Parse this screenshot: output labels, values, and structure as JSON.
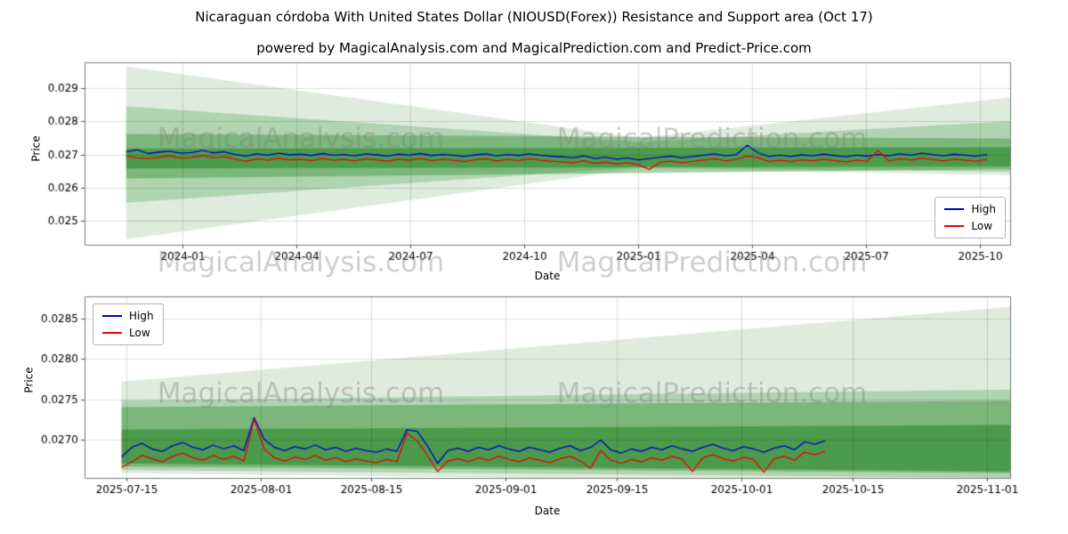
{
  "figure": {
    "title": "Nicaraguan córdoba With United States Dollar (NIOUSD(Forex)) Resistance and Support area (Oct 17)",
    "subtitle": "powered by MagicalAnalysis.com and MagicalPrediction.com and Predict-Price.com",
    "watermark_left": "MagicalAnalysis.com",
    "watermark_right": "MagicalPrediction.com"
  },
  "chart_data": [
    {
      "type": "line",
      "xlabel": "Date",
      "ylabel": "Price",
      "grid": true,
      "legend_position": "lower right",
      "ylim": [
        0.02428,
        0.02978
      ],
      "yticks": [
        {
          "label": "0.025",
          "value": 0.025
        },
        {
          "label": "0.026",
          "value": 0.026
        },
        {
          "label": "0.027",
          "value": 0.027
        },
        {
          "label": "0.028",
          "value": 0.028
        },
        {
          "label": "0.029",
          "value": 0.029
        }
      ],
      "xticks": [
        {
          "label": "2024-01",
          "pos": 0.106
        },
        {
          "label": "2024-04",
          "pos": 0.229
        },
        {
          "label": "2024-07",
          "pos": 0.352
        },
        {
          "label": "2024-10",
          "pos": 0.475
        },
        {
          "label": "2025-01",
          "pos": 0.598
        },
        {
          "label": "2025-04",
          "pos": 0.721
        },
        {
          "label": "2025-07",
          "pos": 0.844
        },
        {
          "label": "2025-10",
          "pos": 0.967
        }
      ],
      "bands": [
        {
          "color": "#2e8b2e",
          "alpha": 0.16,
          "points": [
            {
              "x": 0.045,
              "top": 0.02965,
              "bottom": 0.02445
            },
            {
              "x": 0.6,
              "top": 0.0275,
              "bottom": 0.02658
            },
            {
              "x": 1.0,
              "top": 0.02872,
              "bottom": 0.02638
            }
          ]
        },
        {
          "color": "#2e8b2e",
          "alpha": 0.26,
          "points": [
            {
              "x": 0.045,
              "top": 0.02845,
              "bottom": 0.02555
            },
            {
              "x": 0.6,
              "top": 0.02738,
              "bottom": 0.02662
            },
            {
              "x": 1.0,
              "top": 0.028,
              "bottom": 0.02648
            }
          ]
        },
        {
          "color": "#2e8b2e",
          "alpha": 0.4,
          "points": [
            {
              "x": 0.045,
              "top": 0.02762,
              "bottom": 0.02628
            },
            {
              "x": 1.0,
              "top": 0.02748,
              "bottom": 0.02656
            }
          ]
        },
        {
          "color": "#2e8b2e",
          "alpha": 0.62,
          "points": [
            {
              "x": 0.045,
              "top": 0.02718,
              "bottom": 0.02658
            },
            {
              "x": 1.0,
              "top": 0.02722,
              "bottom": 0.02664
            }
          ]
        }
      ],
      "series": [
        {
          "name": "High",
          "color": "#0000cc",
          "x_start": 0.045,
          "x_end": 0.975,
          "values": [
            0.02708,
            0.02715,
            0.02703,
            0.02707,
            0.0271,
            0.02704,
            0.02706,
            0.02712,
            0.02705,
            0.02708,
            0.027,
            0.02695,
            0.02702,
            0.02698,
            0.02704,
            0.02699,
            0.02701,
            0.02697,
            0.02703,
            0.02698,
            0.027,
            0.02696,
            0.02702,
            0.02699,
            0.02695,
            0.02701,
            0.02698,
            0.02703,
            0.02697,
            0.027,
            0.02698,
            0.02694,
            0.02699,
            0.02702,
            0.02696,
            0.027,
            0.02697,
            0.02702,
            0.02698,
            0.02695,
            0.02693,
            0.0269,
            0.02696,
            0.02688,
            0.02692,
            0.02686,
            0.0269,
            0.02684,
            0.02688,
            0.02692,
            0.02695,
            0.0269,
            0.02694,
            0.02698,
            0.02702,
            0.02696,
            0.027,
            0.02728,
            0.02705,
            0.02694,
            0.02698,
            0.02694,
            0.02699,
            0.02696,
            0.02701,
            0.02697,
            0.02693,
            0.02698,
            0.02695,
            0.027,
            0.02696,
            0.02702,
            0.02698,
            0.02704,
            0.027,
            0.02696,
            0.02701,
            0.02698,
            0.02695,
            0.027
          ]
        },
        {
          "name": "Low",
          "color": "#ee0000",
          "x_start": 0.045,
          "x_end": 0.975,
          "values": [
            0.02695,
            0.0269,
            0.02688,
            0.02692,
            0.02696,
            0.02689,
            0.02691,
            0.02697,
            0.0269,
            0.02693,
            0.02686,
            0.0268,
            0.02687,
            0.02683,
            0.02689,
            0.02684,
            0.02686,
            0.02682,
            0.02688,
            0.02683,
            0.02685,
            0.02681,
            0.02687,
            0.02684,
            0.0268,
            0.02686,
            0.02683,
            0.02688,
            0.02682,
            0.02685,
            0.02683,
            0.02679,
            0.02684,
            0.02687,
            0.02681,
            0.02685,
            0.02682,
            0.02687,
            0.02683,
            0.0268,
            0.02678,
            0.02675,
            0.02681,
            0.02673,
            0.02677,
            0.02671,
            0.02675,
            0.02669,
            0.02655,
            0.02677,
            0.0268,
            0.02675,
            0.02679,
            0.02683,
            0.02687,
            0.02681,
            0.02685,
            0.02695,
            0.0269,
            0.02679,
            0.02683,
            0.02679,
            0.02684,
            0.02681,
            0.02686,
            0.02682,
            0.02678,
            0.02683,
            0.0268,
            0.02712,
            0.02681,
            0.02687,
            0.02683,
            0.02689,
            0.02685,
            0.02681,
            0.02686,
            0.02683,
            0.0268,
            0.02685
          ]
        }
      ]
    },
    {
      "type": "line",
      "xlabel": "Date",
      "ylabel": "Price",
      "grid": true,
      "legend_position": "upper left",
      "ylim": [
        0.02652,
        0.02878
      ],
      "yticks": [
        {
          "label": "0.0270",
          "value": 0.027
        },
        {
          "label": "0.0275",
          "value": 0.0275
        },
        {
          "label": "0.0280",
          "value": 0.028
        },
        {
          "label": "0.0285",
          "value": 0.0285
        }
      ],
      "xticks": [
        {
          "label": "2025-07-15",
          "pos": 0.045
        },
        {
          "label": "2025-08-01",
          "pos": 0.19
        },
        {
          "label": "2025-08-15",
          "pos": 0.31
        },
        {
          "label": "2025-09-01",
          "pos": 0.455
        },
        {
          "label": "2025-09-15",
          "pos": 0.575
        },
        {
          "label": "2025-10-01",
          "pos": 0.71
        },
        {
          "label": "2025-10-15",
          "pos": 0.83
        },
        {
          "label": "2025-11-01",
          "pos": 0.975
        }
      ],
      "bands": [
        {
          "color": "#2e8b2e",
          "alpha": 0.16,
          "points": [
            {
              "x": 0.04,
              "top": 0.02772,
              "bottom": 0.02658
            },
            {
              "x": 1.0,
              "top": 0.02865,
              "bottom": 0.02645
            }
          ]
        },
        {
          "color": "#2e8b2e",
          "alpha": 0.26,
          "points": [
            {
              "x": 0.04,
              "top": 0.02748,
              "bottom": 0.02662
            },
            {
              "x": 1.0,
              "top": 0.02762,
              "bottom": 0.02652
            }
          ]
        },
        {
          "color": "#2e8b2e",
          "alpha": 0.4,
          "points": [
            {
              "x": 0.04,
              "top": 0.0274,
              "bottom": 0.02666
            },
            {
              "x": 1.0,
              "top": 0.02748,
              "bottom": 0.02658
            }
          ]
        },
        {
          "color": "#2e8b2e",
          "alpha": 0.62,
          "points": [
            {
              "x": 0.04,
              "top": 0.02712,
              "bottom": 0.0267
            },
            {
              "x": 1.0,
              "top": 0.02718,
              "bottom": 0.0266
            }
          ]
        }
      ],
      "series": [
        {
          "name": "High",
          "color": "#0000cc",
          "x_start": 0.04,
          "x_end": 0.8,
          "values": [
            0.02678,
            0.0269,
            0.02695,
            0.02688,
            0.02685,
            0.02692,
            0.02696,
            0.0269,
            0.02687,
            0.02693,
            0.02688,
            0.02692,
            0.02686,
            0.02727,
            0.027,
            0.0269,
            0.02686,
            0.02691,
            0.02688,
            0.02693,
            0.02687,
            0.0269,
            0.02685,
            0.02689,
            0.02686,
            0.02684,
            0.02688,
            0.02685,
            0.02712,
            0.0271,
            0.02692,
            0.0267,
            0.02686,
            0.02689,
            0.02685,
            0.0269,
            0.02687,
            0.02692,
            0.02688,
            0.02685,
            0.0269,
            0.02687,
            0.02684,
            0.02689,
            0.02692,
            0.02686,
            0.0269,
            0.02699,
            0.02687,
            0.02683,
            0.02688,
            0.02685,
            0.0269,
            0.02687,
            0.02692,
            0.02688,
            0.02685,
            0.0269,
            0.02694,
            0.02689,
            0.02686,
            0.02691,
            0.02688,
            0.02684,
            0.02689,
            0.02692,
            0.02687,
            0.02697,
            0.02694,
            0.02698
          ]
        },
        {
          "name": "Low",
          "color": "#ee0000",
          "x_start": 0.04,
          "x_end": 0.8,
          "values": [
            0.02665,
            0.02672,
            0.0268,
            0.02676,
            0.02672,
            0.02679,
            0.02683,
            0.02677,
            0.02674,
            0.0268,
            0.02675,
            0.02679,
            0.02673,
            0.02725,
            0.02688,
            0.02677,
            0.02673,
            0.02678,
            0.02675,
            0.0268,
            0.02674,
            0.02677,
            0.02672,
            0.02676,
            0.02673,
            0.02671,
            0.02675,
            0.02672,
            0.02708,
            0.02698,
            0.0268,
            0.0266,
            0.02673,
            0.02676,
            0.02672,
            0.02677,
            0.02674,
            0.02679,
            0.02675,
            0.02672,
            0.02677,
            0.02674,
            0.02671,
            0.02676,
            0.02679,
            0.02673,
            0.02664,
            0.02686,
            0.02674,
            0.0267,
            0.02675,
            0.02672,
            0.02677,
            0.02674,
            0.02679,
            0.02675,
            0.0266,
            0.02677,
            0.02681,
            0.02676,
            0.02673,
            0.02678,
            0.02675,
            0.02659,
            0.02676,
            0.02679,
            0.02674,
            0.02684,
            0.02681,
            0.02685
          ]
        }
      ]
    }
  ]
}
